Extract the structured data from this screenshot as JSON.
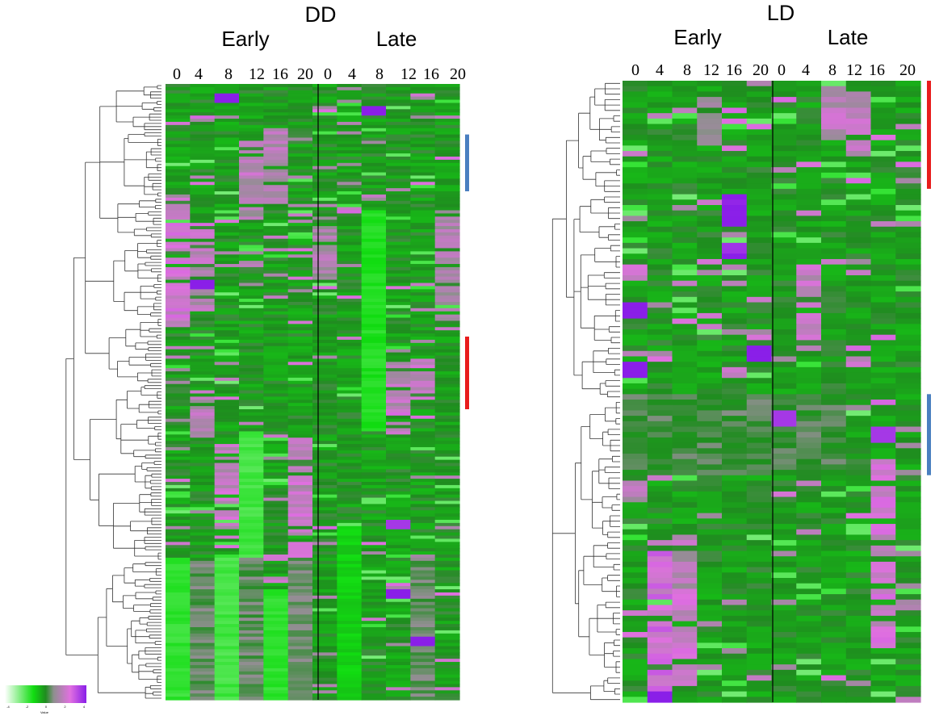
{
  "chart_data": {
    "type": "heatmap",
    "colors": {
      "low": "#ffffff",
      "low_mid": "#11dd11",
      "mid": "#1f8c1f",
      "neutral": "#8f8f8f",
      "high_mid": "#e070e0",
      "high": "#8a1fe8",
      "cluster_red": "#e81c1c",
      "cluster_blue": "#4a7fc0"
    },
    "legend": {
      "scale": [
        "-4",
        "-2",
        "0",
        "2",
        "4"
      ],
      "title": "Value"
    },
    "panels": [
      {
        "title": "DD",
        "groups": [
          {
            "label": "Early",
            "times": [
              "0",
              "4",
              "8",
              "12",
              "16",
              "20"
            ]
          },
          {
            "label": "Late",
            "times": [
              "0",
              "4",
              "8",
              "12",
              "16",
              "20"
            ]
          }
        ],
        "row_count": 195,
        "dendrogram": "left",
        "cluster_markers": [
          {
            "color": "red",
            "row_range": [
              80,
              103
            ]
          },
          {
            "color": "blue",
            "row_range": [
              16,
              34
            ]
          }
        ],
        "high_bands": [
          {
            "col": 0,
            "rows": [
              38,
              78
            ],
            "level": 2.0
          },
          {
            "col": 1,
            "rows": [
              46,
              72
            ],
            "level": 1.6
          },
          {
            "col": 2,
            "rows": [
              114,
              145
            ],
            "level": 1.8
          },
          {
            "col": 2,
            "rows": [
              155,
              195
            ],
            "level": 2.2
          },
          {
            "col": 3,
            "rows": [
              18,
              44
            ],
            "level": 1.4
          },
          {
            "col": 4,
            "rows": [
              14,
              38
            ],
            "level": 1.5
          },
          {
            "col": 5,
            "rows": [
              112,
              150
            ],
            "level": 1.9
          },
          {
            "col": 5,
            "rows": [
              160,
              195
            ],
            "level": 2.0
          },
          {
            "col": 6,
            "rows": [
              42,
              62
            ],
            "level": 1.3
          },
          {
            "col": 9,
            "rows": [
              88,
              104
            ],
            "level": 1.6
          },
          {
            "col": 10,
            "rows": [
              86,
              100
            ],
            "level": 1.8
          },
          {
            "col": 11,
            "rows": [
              40,
              75
            ],
            "level": 1.4
          },
          {
            "col": 13,
            "rows": [
              96,
              112
            ],
            "level": 1.5
          },
          {
            "col": 16,
            "rows": [
              160,
              195
            ],
            "level": 1.3
          }
        ],
        "low_bands": [
          {
            "col": 3,
            "rows": [
              110,
              195
            ],
            "level": -1.8
          },
          {
            "col": 4,
            "rows": [
              160,
              195
            ],
            "level": -1.5
          },
          {
            "col": 7,
            "rows": [
              140,
              195
            ],
            "level": -1.0
          },
          {
            "col": 8,
            "rows": [
              40,
              110
            ],
            "level": -1.4
          },
          {
            "col": 12,
            "rows": [
              150,
              195
            ],
            "level": -1.6
          },
          {
            "col": 14,
            "rows": [
              150,
              195
            ],
            "level": -1.8
          }
        ],
        "neutral_bands": [
          {
            "col": 13,
            "rows": [
              150,
              195
            ]
          },
          {
            "col": 15,
            "rows": [
              150,
              195
            ]
          },
          {
            "col": 17,
            "rows": [
              150,
              195
            ]
          },
          {
            "col": 10,
            "rows": [
              150,
              195
            ]
          }
        ],
        "hotspots": [
          {
            "row": 7,
            "col": 8,
            "level": 4.2
          },
          {
            "row": 3,
            "col": 26,
            "level": 4.0
          },
          {
            "row": 62,
            "col": 1,
            "level": 4.2
          },
          {
            "row": 160,
            "col": 21,
            "level": 4.0
          },
          {
            "row": 175,
            "col": 22,
            "level": 4.0
          },
          {
            "row": 138,
            "col": 9,
            "level": 3.5
          }
        ]
      },
      {
        "title": "LD",
        "groups": [
          {
            "label": "Early",
            "times": [
              "0",
              "4",
              "8",
              "12",
              "16",
              "20"
            ]
          },
          {
            "label": "Late",
            "times": [
              "0",
              "4",
              "8",
              "12",
              "16",
              "20"
            ]
          }
        ],
        "row_count": 115,
        "dendrogram": "left",
        "cluster_markers": [
          {
            "color": "red",
            "row_range": [
              0,
              20
            ]
          },
          {
            "color": "blue",
            "row_range": [
              58,
              73
            ]
          }
        ],
        "high_bands": [
          {
            "col": 1,
            "rows": [
              85,
              113
            ],
            "level": 2.3
          },
          {
            "col": 2,
            "rows": [
              90,
              112
            ],
            "level": 2.0
          },
          {
            "col": 10,
            "rows": [
              70,
              105
            ],
            "level": 2.0
          },
          {
            "col": 0,
            "rows": [
              32,
              37
            ],
            "level": 2.0
          },
          {
            "col": 4,
            "rows": [
              21,
              33
            ],
            "level": 4.0
          },
          {
            "col": 7,
            "rows": [
              35,
              50
            ],
            "level": 1.8
          },
          {
            "col": 8,
            "rows": [
              1,
              11
            ],
            "level": 1.6
          },
          {
            "col": 9,
            "rows": [
              2,
              14
            ],
            "level": 1.7
          },
          {
            "col": 14,
            "rows": [
              84,
              94
            ],
            "level": 1.5
          },
          {
            "col": 15,
            "rows": [
              2,
              12
            ],
            "level": 1.2
          },
          {
            "col": 12,
            "rows": [
              72,
              78
            ],
            "level": 1.4
          }
        ],
        "low_bands": [],
        "neutral_bands": [
          {
            "col": 0,
            "rows": [
              58,
              73
            ],
            "level": 0.3
          },
          {
            "col": 1,
            "rows": [
              58,
              73
            ],
            "level": 0.3
          },
          {
            "col": 2,
            "rows": [
              58,
              73
            ],
            "level": 0.3
          },
          {
            "col": 3,
            "rows": [
              58,
              73
            ],
            "level": 0.3
          },
          {
            "col": 4,
            "rows": [
              58,
              73
            ],
            "level": 0.3
          },
          {
            "col": 5,
            "rows": [
              58,
              73
            ],
            "level": 0.3
          },
          {
            "col": 6,
            "rows": [
              58,
              73
            ],
            "level": 0.3
          },
          {
            "col": 7,
            "rows": [
              58,
              73
            ],
            "level": 0.3
          },
          {
            "col": 8,
            "rows": [
              58,
              73
            ],
            "level": 0.3
          }
        ],
        "hotspots": [
          {
            "row": 41,
            "col": 0,
            "level": 4.0
          },
          {
            "row": 49,
            "col": 5,
            "level": 4.2
          },
          {
            "row": 52,
            "col": 12,
            "level": 4.0
          },
          {
            "row": 64,
            "col": 10,
            "level": 3.5
          },
          {
            "row": 113,
            "col": 1,
            "level": 4.0
          },
          {
            "row": 61,
            "col": 18,
            "level": 3.5
          }
        ]
      }
    ]
  }
}
